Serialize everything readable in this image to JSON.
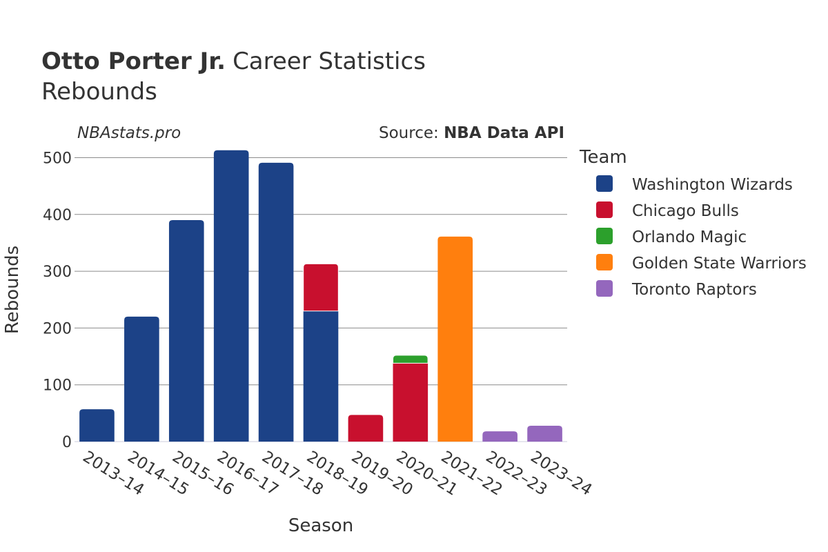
{
  "header": {
    "title_bold": "Otto Porter Jr.",
    "title_rest": "Career Statistics",
    "subtitle": "Rebounds",
    "watermark": "NBAstats.pro",
    "source_label": "Source:",
    "source_value": "NBA Data API"
  },
  "legend": {
    "title": "Team"
  },
  "chart_data": {
    "type": "bar",
    "stacked": true,
    "xlabel": "Season",
    "ylabel": "Rebounds",
    "ylim": [
      0,
      520
    ],
    "yticks": [
      0,
      100,
      200,
      300,
      400,
      500
    ],
    "grid": true,
    "legend_position": "right",
    "categories": [
      "2013–14",
      "2014–15",
      "2015–16",
      "2016–17",
      "2017–18",
      "2018–19",
      "2019–20",
      "2020–21",
      "2021–22",
      "2022–23",
      "2023–24"
    ],
    "series": [
      {
        "name": "Washington Wizards",
        "color": "#1c4287",
        "values": [
          57,
          220,
          390,
          513,
          491,
          230,
          0,
          0,
          0,
          0,
          0
        ]
      },
      {
        "name": "Chicago Bulls",
        "color": "#c8102e",
        "values": [
          0,
          0,
          0,
          0,
          0,
          83,
          47,
          138,
          0,
          0,
          0
        ]
      },
      {
        "name": "Orlando Magic",
        "color": "#2ca02c",
        "values": [
          0,
          0,
          0,
          0,
          0,
          0,
          0,
          14,
          0,
          0,
          0
        ]
      },
      {
        "name": "Golden State Warriors",
        "color": "#ff7f0e",
        "values": [
          0,
          0,
          0,
          0,
          0,
          0,
          0,
          0,
          361,
          0,
          0
        ]
      },
      {
        "name": "Toronto Raptors",
        "color": "#9467bd",
        "values": [
          0,
          0,
          0,
          0,
          0,
          0,
          0,
          0,
          0,
          18,
          28
        ]
      }
    ]
  }
}
